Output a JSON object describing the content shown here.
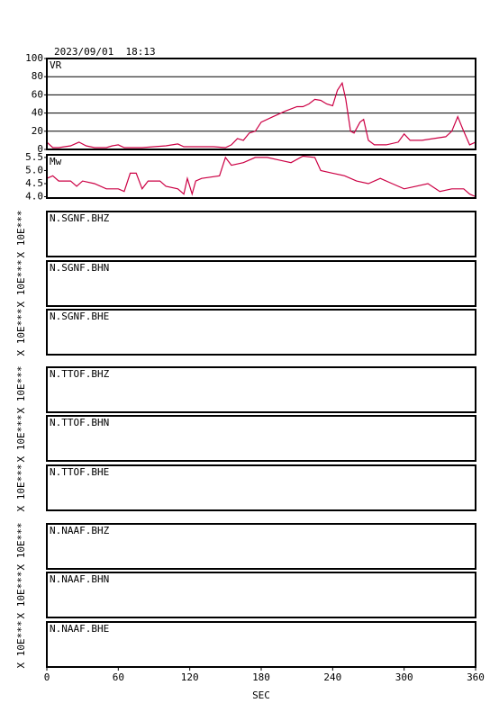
{
  "header": {
    "timestamp": "2023/09/01  18:13"
  },
  "chart_data": [
    {
      "type": "line",
      "ylabel": "VR",
      "color": "#cc0044",
      "grid": true,
      "xlim": [
        0,
        360
      ],
      "ylim": [
        0,
        100
      ],
      "yticks": [
        0,
        20,
        40,
        60,
        80,
        100
      ],
      "x": [
        0,
        5,
        10,
        20,
        27,
        33,
        40,
        50,
        55,
        60,
        65,
        80,
        90,
        100,
        110,
        115,
        130,
        140,
        150,
        155,
        160,
        165,
        170,
        175,
        180,
        190,
        200,
        210,
        215,
        220,
        225,
        230,
        235,
        240,
        244,
        248,
        251,
        255,
        258,
        263,
        266,
        270,
        275,
        285,
        295,
        300,
        305,
        315,
        325,
        335,
        340,
        345,
        350,
        355,
        360
      ],
      "values": [
        8,
        2,
        2,
        4,
        8,
        4,
        2,
        2,
        4,
        5,
        2,
        2,
        3,
        4,
        6,
        3,
        3,
        3,
        2,
        5,
        12,
        10,
        18,
        20,
        30,
        36,
        42,
        47,
        47,
        50,
        55,
        54,
        50,
        48,
        65,
        73,
        55,
        20,
        18,
        30,
        33,
        10,
        5,
        5,
        8,
        17,
        10,
        10,
        12,
        14,
        20,
        36,
        20,
        5,
        8
      ]
    },
    {
      "type": "line",
      "ylabel": "Mw",
      "color": "#cc0044",
      "grid": false,
      "xlim": [
        0,
        360
      ],
      "ylim": [
        3.95,
        5.6
      ],
      "yticks": [
        {
          "value": 4,
          "label": "4.0"
        },
        {
          "value": 4.5,
          "label": "4.5"
        },
        {
          "value": 5,
          "label": "5.0"
        },
        {
          "value": 5.5,
          "label": "5.5"
        }
      ],
      "x": [
        0,
        5,
        10,
        20,
        25,
        30,
        40,
        50,
        60,
        65,
        70,
        75,
        80,
        85,
        95,
        100,
        110,
        115,
        118,
        122,
        125,
        130,
        145,
        150,
        155,
        165,
        175,
        185,
        195,
        205,
        215,
        225,
        230,
        240,
        250,
        260,
        270,
        280,
        290,
        300,
        310,
        320,
        330,
        340,
        350,
        355,
        360
      ],
      "values": [
        4.7,
        4.8,
        4.6,
        4.6,
        4.4,
        4.6,
        4.5,
        4.3,
        4.3,
        4.2,
        4.9,
        4.9,
        4.3,
        4.6,
        4.6,
        4.4,
        4.3,
        4.1,
        4.7,
        4.1,
        4.6,
        4.7,
        4.8,
        5.5,
        5.2,
        5.3,
        5.5,
        5.5,
        5.4,
        5.3,
        5.55,
        5.5,
        5.0,
        4.9,
        4.8,
        4.6,
        4.5,
        4.7,
        4.5,
        4.3,
        4.4,
        4.5,
        4.2,
        4.3,
        4.3,
        4.1,
        4.0
      ]
    },
    {
      "type": "waveform",
      "title": "N.SGNF.BHZ",
      "ylabel": "X 10E***"
    },
    {
      "type": "waveform",
      "title": "N.SGNF.BHN",
      "ylabel": "X 10E***"
    },
    {
      "type": "waveform",
      "title": "N.SGNF.BHE",
      "ylabel": "X 10E***"
    },
    {
      "type": "waveform",
      "title": "N.TTOF.BHZ",
      "ylabel": "X 10E***"
    },
    {
      "type": "waveform",
      "title": "N.TTOF.BHN",
      "ylabel": "X 10E***"
    },
    {
      "type": "waveform",
      "title": "N.TTOF.BHE",
      "ylabel": "X 10E***"
    },
    {
      "type": "waveform",
      "title": "N.NAAF.BHZ",
      "ylabel": "X 10E***"
    },
    {
      "type": "waveform",
      "title": "N.NAAF.BHN",
      "ylabel": "X 10E***"
    },
    {
      "type": "waveform",
      "title": "N.NAAF.BHE",
      "ylabel": "X 10E***",
      "xlabel": "SEC",
      "xlim": [
        0,
        360
      ],
      "xticks": [
        0,
        60,
        120,
        180,
        240,
        300,
        360
      ]
    }
  ]
}
